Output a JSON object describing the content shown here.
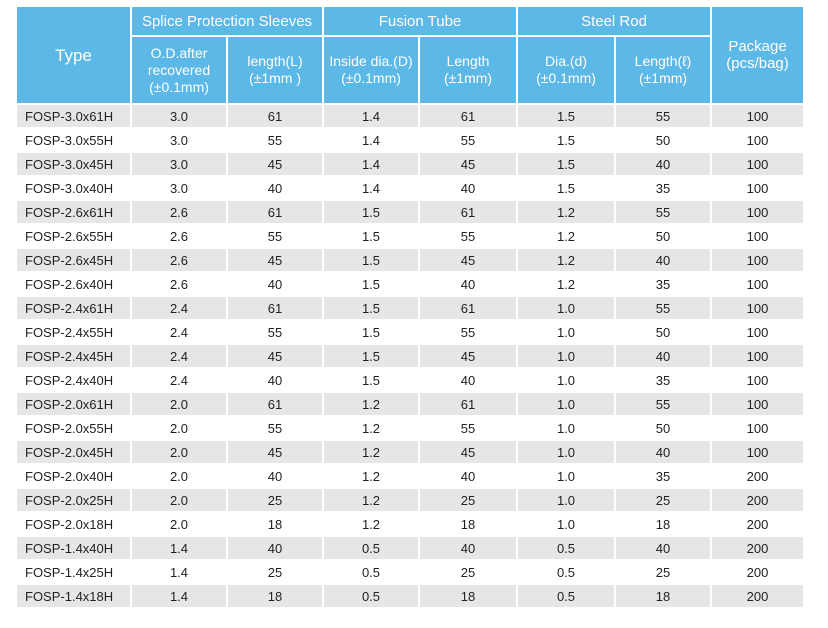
{
  "table": {
    "type_header": "Type",
    "package_header": [
      "Package",
      "(pcs/bag)"
    ],
    "groups": [
      "Splice Protection Sleeves",
      "Fusion Tube",
      "Steel Rod"
    ],
    "columns": [
      [
        "O.D.after",
        "recovered",
        "(±0.1mm)"
      ],
      [
        "length(L)",
        "(±1mm )"
      ],
      [
        "Inside dia.(D)",
        "(±0.1mm)"
      ],
      [
        "Length",
        "(±1mm)"
      ],
      [
        "Dia.(d)",
        "(±0.1mm)"
      ],
      [
        "Length(ℓ)",
        "(±1mm)"
      ]
    ],
    "rows": [
      [
        "FOSP-3.0x61H",
        "3.0",
        "61",
        "1.4",
        "61",
        "1.5",
        "55",
        "100"
      ],
      [
        "FOSP-3.0x55H",
        "3.0",
        "55",
        "1.4",
        "55",
        "1.5",
        "50",
        "100"
      ],
      [
        "FOSP-3.0x45H",
        "3.0",
        "45",
        "1.4",
        "45",
        "1.5",
        "40",
        "100"
      ],
      [
        "FOSP-3.0x40H",
        "3.0",
        "40",
        "1.4",
        "40",
        "1.5",
        "35",
        "100"
      ],
      [
        "FOSP-2.6x61H",
        "2.6",
        "61",
        "1.5",
        "61",
        "1.2",
        "55",
        "100"
      ],
      [
        "FOSP-2.6x55H",
        "2.6",
        "55",
        "1.5",
        "55",
        "1.2",
        "50",
        "100"
      ],
      [
        "FOSP-2.6x45H",
        "2.6",
        "45",
        "1.5",
        "45",
        "1.2",
        "40",
        "100"
      ],
      [
        "FOSP-2.6x40H",
        "2.6",
        "40",
        "1.5",
        "40",
        "1.2",
        "35",
        "100"
      ],
      [
        "FOSP-2.4x61H",
        "2.4",
        "61",
        "1.5",
        "61",
        "1.0",
        "55",
        "100"
      ],
      [
        "FOSP-2.4x55H",
        "2.4",
        "55",
        "1.5",
        "55",
        "1.0",
        "50",
        "100"
      ],
      [
        "FOSP-2.4x45H",
        "2.4",
        "45",
        "1.5",
        "45",
        "1.0",
        "40",
        "100"
      ],
      [
        "FOSP-2.4x40H",
        "2.4",
        "40",
        "1.5",
        "40",
        "1.0",
        "35",
        "100"
      ],
      [
        "FOSP-2.0x61H",
        "2.0",
        "61",
        "1.2",
        "61",
        "1.0",
        "55",
        "100"
      ],
      [
        "FOSP-2.0x55H",
        "2.0",
        "55",
        "1.2",
        "55",
        "1.0",
        "50",
        "100"
      ],
      [
        "FOSP-2.0x45H",
        "2.0",
        "45",
        "1.2",
        "45",
        "1.0",
        "40",
        "100"
      ],
      [
        "FOSP-2.0x40H",
        "2.0",
        "40",
        "1.2",
        "40",
        "1.0",
        "35",
        "200"
      ],
      [
        "FOSP-2.0x25H",
        "2.0",
        "25",
        "1.2",
        "25",
        "1.0",
        "25",
        "200"
      ],
      [
        "FOSP-2.0x18H",
        "2.0",
        "18",
        "1.2",
        "18",
        "1.0",
        "18",
        "200"
      ],
      [
        "FOSP-1.4x40H",
        "1.4",
        "40",
        "0.5",
        "40",
        "0.5",
        "40",
        "200"
      ],
      [
        "FOSP-1.4x25H",
        "1.4",
        "25",
        "0.5",
        "25",
        "0.5",
        "25",
        "200"
      ],
      [
        "FOSP-1.4x18H",
        "1.4",
        "18",
        "0.5",
        "18",
        "0.5",
        "18",
        "200"
      ]
    ]
  }
}
